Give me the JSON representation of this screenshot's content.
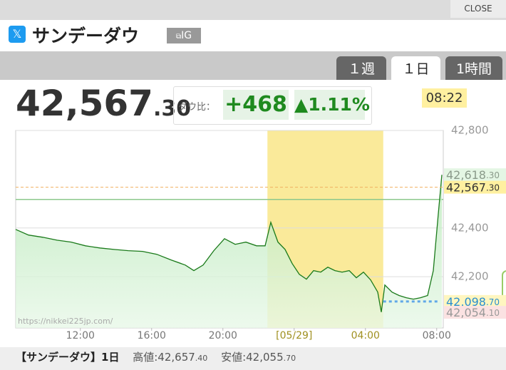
{
  "header": {
    "close": "CLOSE",
    "title": "サンデーダウ",
    "source": "IG"
  },
  "tabs": [
    "１週",
    "１日",
    "1時間"
  ],
  "active_tab": 1,
  "quote": {
    "price": "42,567.30",
    "change_label": "ダウ比：",
    "change": "+468",
    "change_pct": "▲1.11%",
    "time": "08:22"
  },
  "chart_data": {
    "type": "line",
    "color": "#1a7a1a",
    "grid": true,
    "x": [
      8.37,
      9.09,
      9.89,
      10.69,
      11.49,
      12.29,
      13.09,
      13.89,
      14.69,
      15.49,
      16.29,
      17.09,
      17.89,
      18.37,
      18.89,
      19.49,
      20.09,
      20.69,
      21.29,
      21.89,
      22.37,
      22.69,
      23.09,
      23.49,
      23.89,
      24.29,
      24.69,
      25.09,
      25.49,
      25.89,
      26.29,
      26.69,
      27.09,
      27.49,
      27.89,
      28.29,
      28.69,
      28.89,
      29.09,
      29.49,
      29.89,
      30.29,
      30.69,
      31.09,
      31.49,
      31.81,
      32.09,
      32.29
    ],
    "values": [
      42394,
      42371,
      42362,
      42350,
      42342,
      42327,
      42318,
      42312,
      42307,
      42304,
      42292,
      42269,
      42248,
      42225,
      42248,
      42307,
      42356,
      42333,
      42342,
      42327,
      42327,
      42423,
      42342,
      42312,
      42254,
      42210,
      42190,
      42225,
      42219,
      42239,
      42225,
      42219,
      42225,
      42196,
      42219,
      42187,
      42137,
      42055,
      42166,
      42137,
      42123,
      42114,
      42108,
      42114,
      42123,
      42225,
      42458,
      42618
    ],
    "xlim": [
      8.37,
      32.37
    ],
    "ylim": [
      41990,
      42800
    ],
    "xticks": [
      {
        "value": 12,
        "label": "12:00"
      },
      {
        "value": 16,
        "label": "16:00"
      },
      {
        "value": 20,
        "label": "20:00"
      },
      {
        "value": 24,
        "label": "[05/29]"
      },
      {
        "value": 28,
        "label": "04:00"
      },
      {
        "value": 32,
        "label": "08:00"
      }
    ],
    "yticks": [
      {
        "value": 42200,
        "label": "42,200"
      },
      {
        "value": 42400,
        "label": "42,400"
      },
      {
        "value": 42800,
        "label": "42,800"
      }
    ],
    "highlight": [
      22.5,
      29
    ],
    "highlight_color": "#faea9a",
    "ref_line": {
      "value": 42517,
      "color": "#8cc88c"
    },
    "tags": [
      {
        "value": 42618.3,
        "label": "42,618.30",
        "bg": "#e4f6e4",
        "fg": "#8a9a8a"
      },
      {
        "value": 42567.3,
        "label": "42,567.30",
        "bg": "#fff0a0",
        "fg": "#333333",
        "line": "dashed",
        "line_color": "#f0b060"
      },
      {
        "value": 42098.7,
        "label": "42,098.70",
        "bg": "#fff6c0",
        "fg": "#2a8fd0",
        "line": "dotted",
        "line_color": "#60a8e8"
      },
      {
        "value": 42054.1,
        "label": "42,054.10",
        "bg": "#fbe2e2",
        "fg": "#999999"
      }
    ],
    "watermark": "https://nikkei225jp.com/"
  },
  "footer": {
    "title": "【サンデーダウ】1日",
    "high_label": "高値:",
    "high": "42,657.40",
    "low_label": "安値:",
    "low": "42,055.70"
  }
}
